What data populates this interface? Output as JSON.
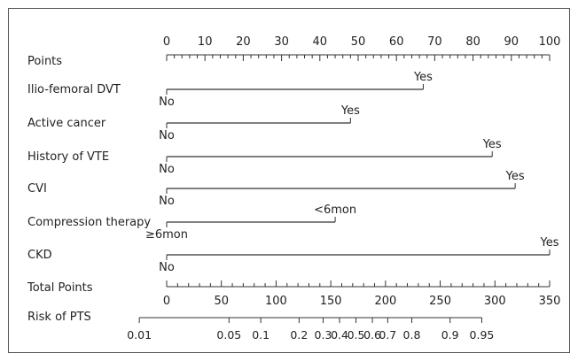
{
  "chart_data": {
    "type": "nomogram",
    "points_scale": {
      "label": "Points",
      "min": 0,
      "max": 100,
      "major_ticks": [
        "0",
        "10",
        "20",
        "30",
        "40",
        "50",
        "60",
        "70",
        "80",
        "90",
        "100"
      ],
      "minor_step": 2
    },
    "predictors": [
      {
        "label": "Ilio-femoral DVT",
        "levels": [
          {
            "label": "No",
            "points": 0
          },
          {
            "label": "Yes",
            "points": 67
          }
        ]
      },
      {
        "label": "Active cancer",
        "levels": [
          {
            "label": "No",
            "points": 0
          },
          {
            "label": "Yes",
            "points": 48
          }
        ]
      },
      {
        "label": "History of VTE",
        "levels": [
          {
            "label": "No",
            "points": 0
          },
          {
            "label": "Yes",
            "points": 85
          }
        ]
      },
      {
        "label": "CVI",
        "levels": [
          {
            "label": "No",
            "points": 0
          },
          {
            "label": "Yes",
            "points": 91
          }
        ]
      },
      {
        "label": "Compression therapy",
        "levels": [
          {
            "label": "≥6mon",
            "points": 0
          },
          {
            "label": "<6mon",
            "points": 44
          }
        ]
      },
      {
        "label": "CKD",
        "levels": [
          {
            "label": "No",
            "points": 0
          },
          {
            "label": "Yes",
            "points": 100
          }
        ]
      }
    ],
    "total_points_scale": {
      "label": "Total Points",
      "min": 0,
      "max": 350,
      "major_ticks": [
        "0",
        "50",
        "100",
        "150",
        "200",
        "250",
        "300",
        "350"
      ],
      "minor_step": 10
    },
    "risk_scale": {
      "label": "Risk of PTS",
      "ticks": [
        {
          "label": "0.01",
          "total_points": -25
        },
        {
          "label": "0.05",
          "total_points": 57
        },
        {
          "label": "0.1",
          "total_points": 86
        },
        {
          "label": "0.2",
          "total_points": 121
        },
        {
          "label": "0.3",
          "total_points": 143
        },
        {
          "label": "0.4",
          "total_points": 158
        },
        {
          "label": "0.5",
          "total_points": 173
        },
        {
          "label": "0.6",
          "total_points": 188
        },
        {
          "label": "0.7",
          "total_points": 202
        },
        {
          "label": "0.8",
          "total_points": 224
        },
        {
          "label": "0.9",
          "total_points": 259
        },
        {
          "label": "0.95",
          "total_points": 288
        }
      ]
    }
  }
}
